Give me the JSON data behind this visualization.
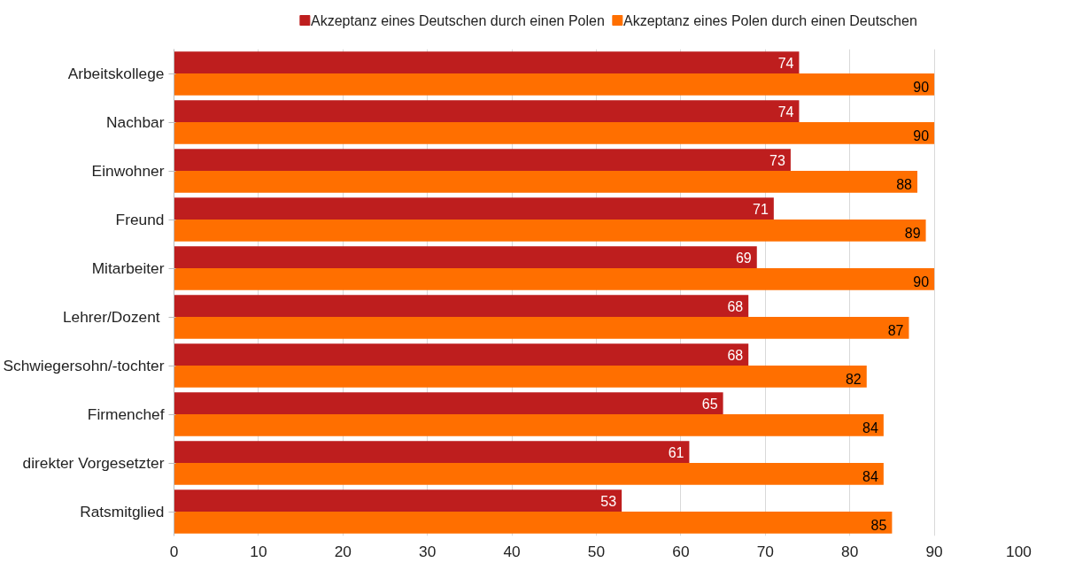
{
  "chart_data": {
    "type": "bar",
    "orientation": "horizontal",
    "categories": [
      "Arbeitskollege",
      "Nachbar",
      "Einwohner",
      "Freund",
      "Mitarbeiter",
      "Lehrer/Dozent ",
      "Schwiegersohn/-tochter",
      "Firmenchef",
      "direkter Vorgesetzter",
      "Ratsmitglied"
    ],
    "series": [
      {
        "name": "Akzeptanz eines Deutschen durch einen Polen",
        "color": "#be1e1e",
        "values": [
          74,
          74,
          73,
          71,
          69,
          68,
          68,
          65,
          61,
          53
        ]
      },
      {
        "name": "Akzeptanz eines Polen durch einen Deutschen",
        "color": "#ff6f00",
        "values": [
          90,
          90,
          88,
          89,
          90,
          87,
          82,
          84,
          84,
          85
        ]
      }
    ],
    "xlim": [
      0,
      100
    ],
    "xticks": [
      0,
      10,
      20,
      30,
      40,
      50,
      60,
      70,
      80,
      90,
      100
    ],
    "grid": "x",
    "legend": "top",
    "data_labels": true
  }
}
